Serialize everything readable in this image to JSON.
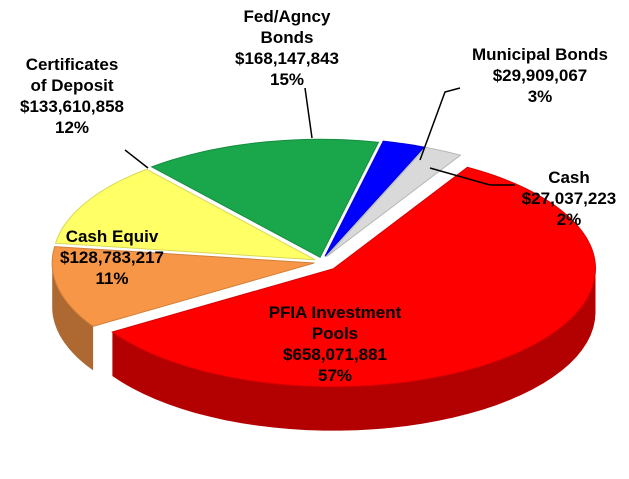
{
  "chart_data": {
    "type": "pie",
    "categories": [
      [
        "Fed/Agncy",
        "Bonds"
      ],
      [
        "Municipal Bonds"
      ],
      [
        "Cash"
      ],
      [
        "PFIA Investment",
        "Pools"
      ],
      [
        "Cash Equiv"
      ],
      [
        "Certificates",
        "of Deposit"
      ]
    ],
    "values": [
      168147843,
      29909067,
      27037223,
      658071881,
      128783217,
      133610858
    ],
    "value_labels": [
      "$168,147,843",
      "$29,909,067",
      "$27,037,223",
      "$658,071,881",
      "$128,783,217",
      "$133,610,858"
    ],
    "percent_labels": [
      "15%",
      "3%",
      "2%",
      "57%",
      "11%",
      "12%"
    ],
    "colors": [
      "#1aa64b",
      "#0000ff",
      "#d9d9d9",
      "#ff0000",
      "#f79646",
      "#ffff66"
    ]
  }
}
